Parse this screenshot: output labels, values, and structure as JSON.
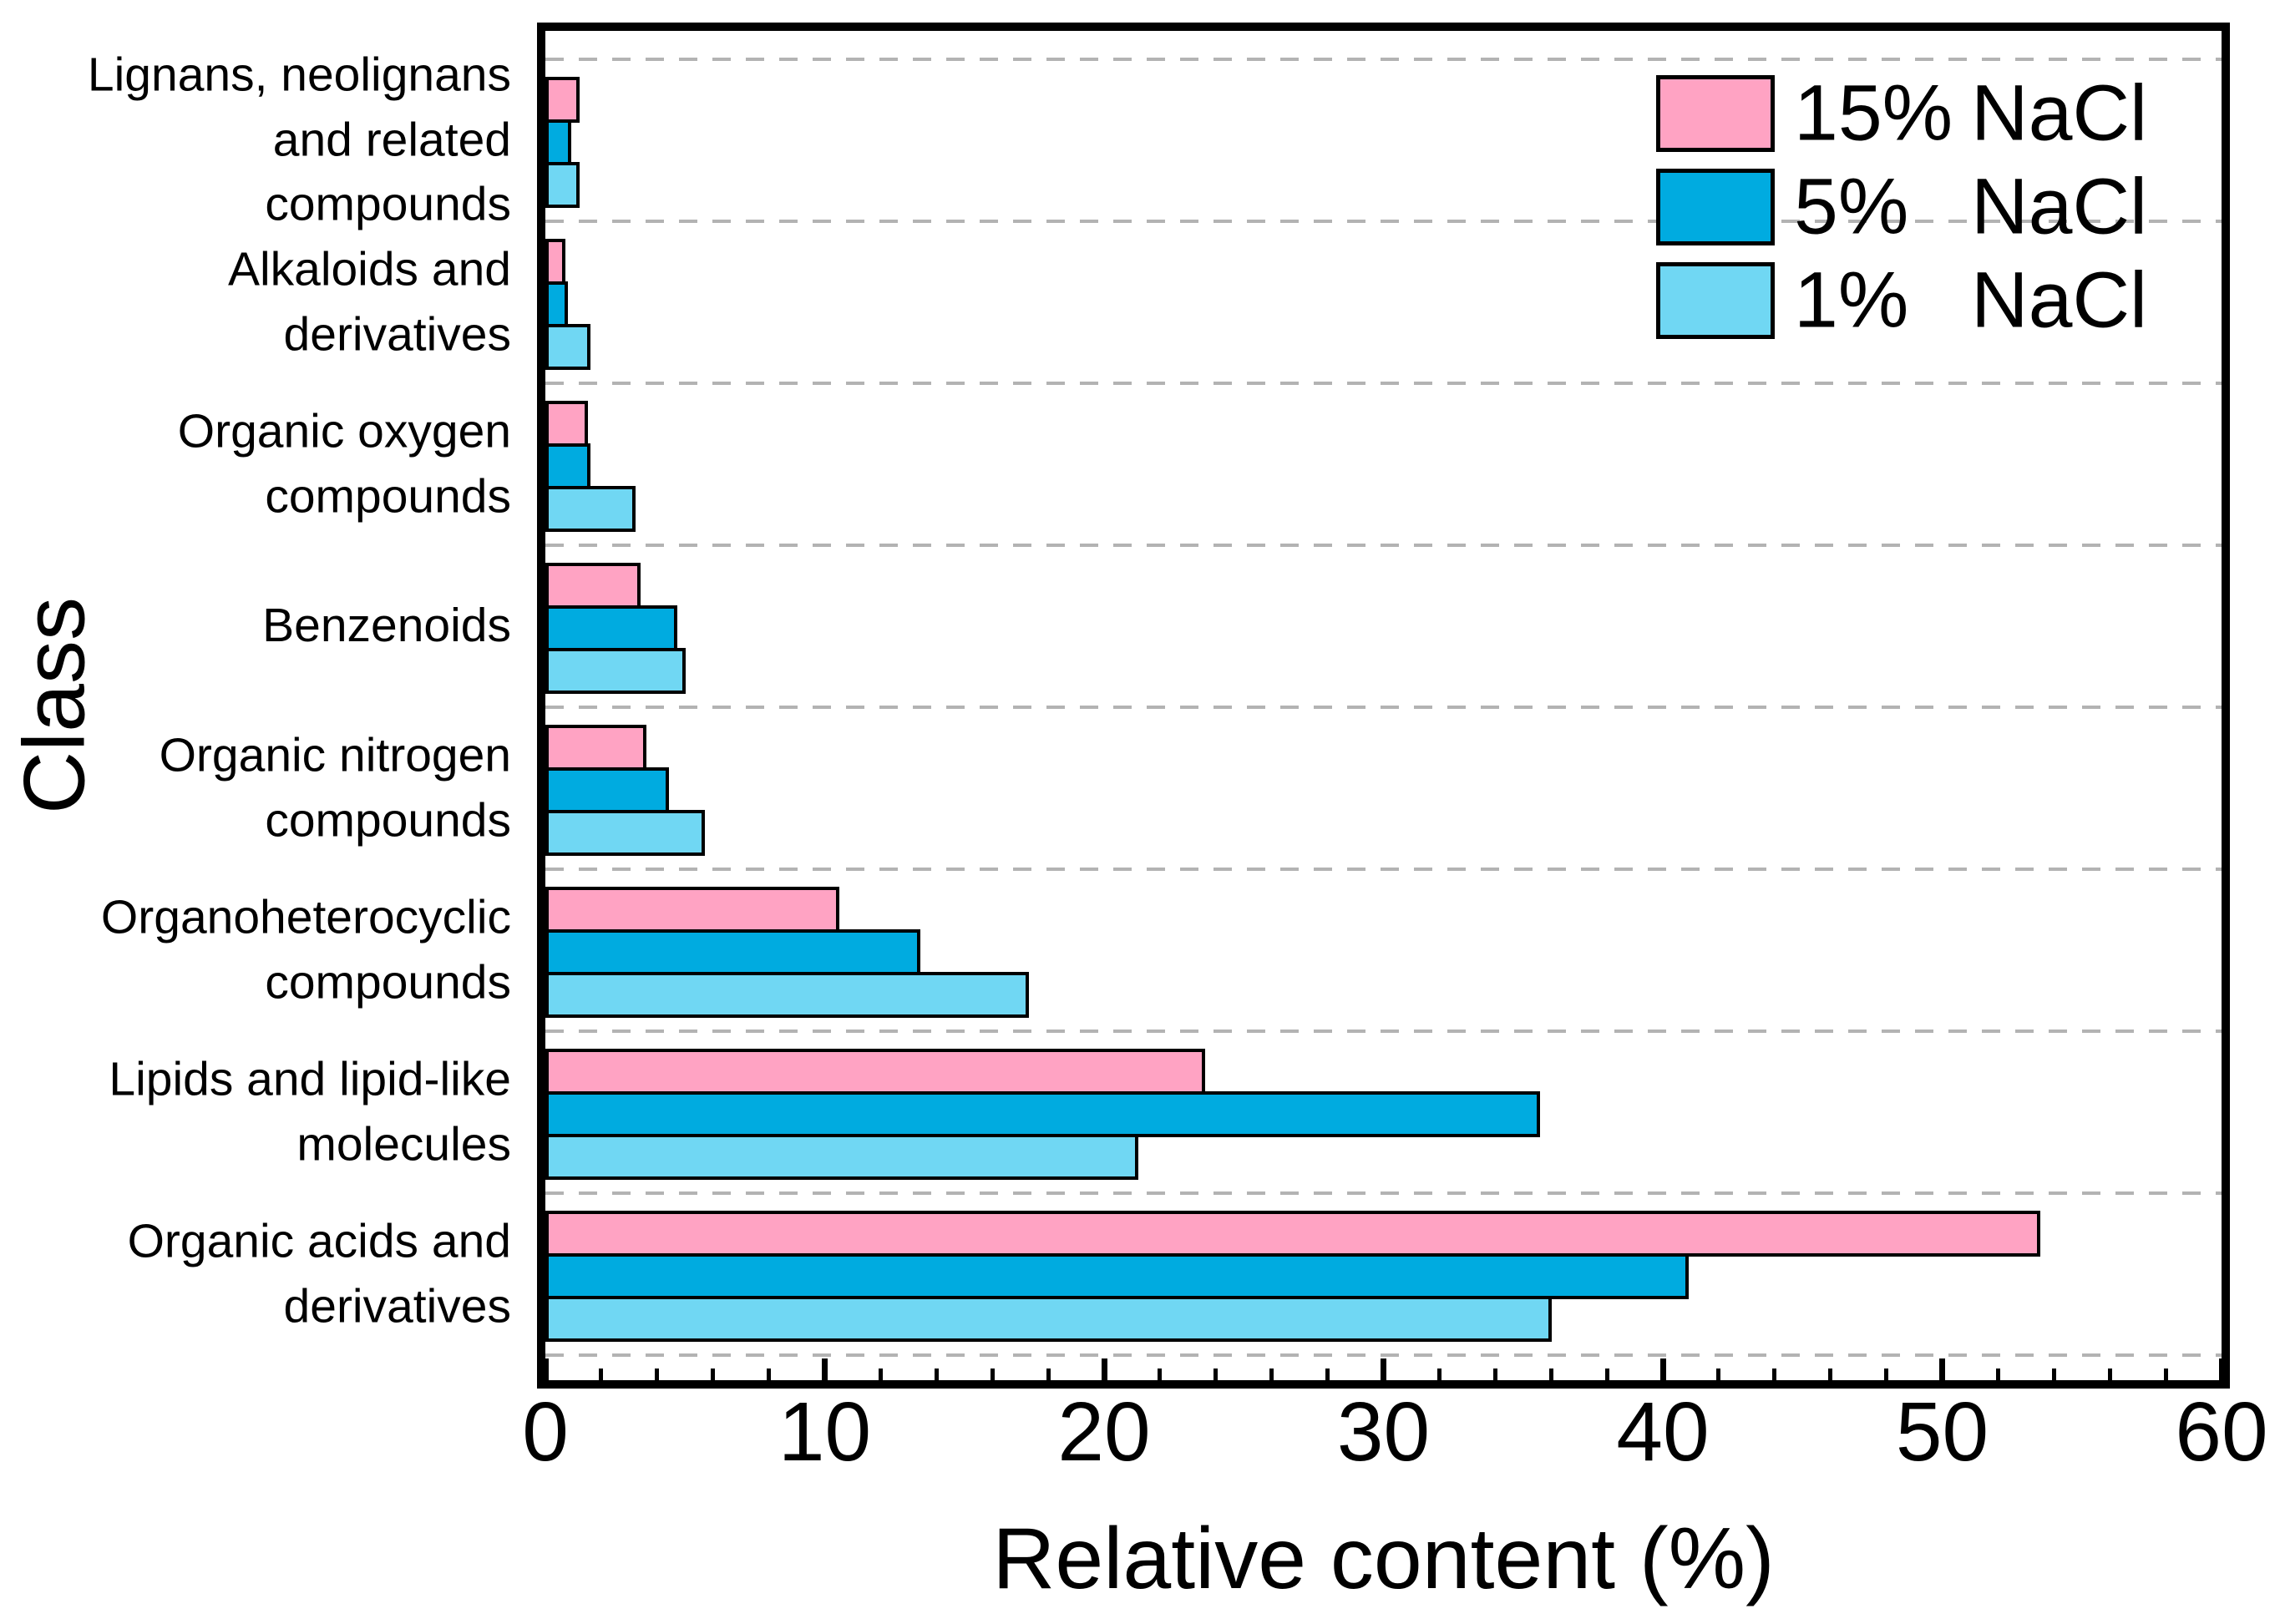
{
  "chart_data": {
    "type": "bar",
    "orientation": "horizontal",
    "title": "",
    "xlabel": "Relative content (%)",
    "ylabel": "Class",
    "xlim": [
      0,
      60
    ],
    "x_major_ticks": [
      0,
      10,
      20,
      30,
      40,
      50,
      60
    ],
    "x_tick_labels": [
      "0",
      "10",
      "20",
      "30",
      "40",
      "50",
      "60"
    ],
    "x_minor_tick_step": 2,
    "grid": "horizontal dashed separators between category groups",
    "legend_position": "top-right inside plot",
    "background": "#ffffff",
    "bar_border_color": "#000000",
    "gridline_color": "#b3b3b3",
    "categories": [
      "Lignans, neolignans and related compounds",
      "Alkaloids and derivatives",
      "Organic oxygen compounds",
      "Benzenoids",
      "Organic nitrogen compounds",
      "Organoheterocyclic compounds",
      "Lipids and lipid-like molecules",
      "Organic acids and derivatives"
    ],
    "category_lines": [
      [
        "Lignans, neolignans",
        "and related",
        "compounds"
      ],
      [
        "Alkaloids and",
        "derivatives"
      ],
      [
        "Organic oxygen",
        "compounds"
      ],
      [
        "Benzenoids"
      ],
      [
        "Organic nitrogen",
        "compounds"
      ],
      [
        "Organoheterocyclic",
        "compounds"
      ],
      [
        "Lipids and lipid-like",
        "molecules"
      ],
      [
        "Organic acids and",
        "derivatives"
      ]
    ],
    "series": [
      {
        "name": "15% NaCl",
        "color": "#ffa3c3",
        "values": [
          1.1,
          0.6,
          1.4,
          3.3,
          3.5,
          10.4,
          23.5,
          53.4
        ]
      },
      {
        "name": "5% NaCl",
        "color": "#00abe0",
        "values": [
          0.8,
          0.7,
          1.5,
          4.6,
          4.3,
          13.3,
          35.5,
          40.8
        ]
      },
      {
        "name": "1% NaCl",
        "color": "#70d7f3",
        "values": [
          1.1,
          1.5,
          3.1,
          4.9,
          5.6,
          17.2,
          21.1,
          35.9
        ]
      }
    ],
    "legend": [
      {
        "pct": "15%",
        "salt": "NaCl",
        "color": "#ffa3c3"
      },
      {
        "pct": "5%",
        "salt": "NaCl",
        "color": "#00abe0"
      },
      {
        "pct": "1%",
        "salt": "NaCl",
        "color": "#70d7f3"
      }
    ]
  }
}
